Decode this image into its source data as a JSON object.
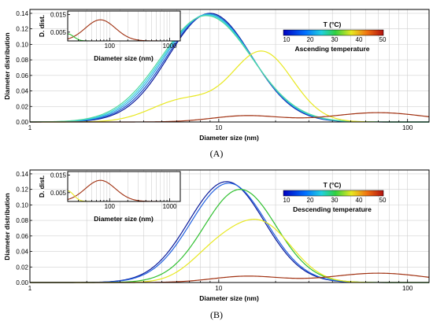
{
  "figure": {
    "panels": [
      {
        "caption": "(A)",
        "xlabel": "Diameter size (nm)",
        "ylabel": "Diameter distribution",
        "colorbar": {
          "title": "T (°C)",
          "ticks": [
            "10",
            "20",
            "30",
            "40",
            "50"
          ],
          "label": "Ascending temperature"
        },
        "inset": {
          "ylabel": "D. dist.",
          "xlabel": "Diameter size (nm)"
        }
      },
      {
        "caption": "(B)",
        "xlabel": "Diameter size (nm)",
        "ylabel": "Diameter distribution",
        "colorbar": {
          "title": "T (°C)",
          "ticks": [
            "10",
            "20",
            "30",
            "40",
            "50"
          ],
          "label": "Descending temperature"
        },
        "inset": {
          "ylabel": "D. dist.",
          "xlabel": "Diameter size (nm)"
        }
      }
    ]
  },
  "chart_data": [
    {
      "type": "line",
      "xscale": "log",
      "xlim": [
        1,
        130
      ],
      "ylim": [
        0,
        0.145
      ],
      "x_ticks": [
        1,
        10,
        100
      ],
      "y_ticks": [
        0.0,
        0.02,
        0.04,
        0.06,
        0.08,
        0.1,
        0.12,
        0.14
      ],
      "grid": true,
      "colors": {
        "blue": "#1020c8",
        "cyan": "#30d0e0",
        "green": "#30c030",
        "yellow": "#e8e820",
        "brown": "#a03010"
      },
      "series": [
        {
          "color": "#0a1a9a",
          "peaks": [
            {
              "center": 9.0,
              "height": 0.14,
              "sigma": 0.22
            }
          ]
        },
        {
          "color": "#1a50d0",
          "peaks": [
            {
              "center": 8.9,
              "height": 0.139,
              "sigma": 0.225
            }
          ]
        },
        {
          "color": "#2aa0e0",
          "peaks": [
            {
              "center": 8.8,
              "height": 0.139,
              "sigma": 0.23
            }
          ]
        },
        {
          "color": "#30d0e0",
          "peaks": [
            {
              "center": 8.7,
              "height": 0.138,
              "sigma": 0.235
            }
          ]
        },
        {
          "color": "#50d8a0",
          "peaks": [
            {
              "center": 8.6,
              "height": 0.137,
              "sigma": 0.24
            }
          ]
        },
        {
          "color": "#e8e820",
          "peaks": [
            {
              "center": 6.5,
              "height": 0.028,
              "sigma": 0.17
            },
            {
              "center": 17.0,
              "height": 0.09,
              "sigma": 0.16
            }
          ]
        },
        {
          "color": "#a03010",
          "peaks": [
            {
              "center": 14.0,
              "height": 0.008,
              "sigma": 0.18
            },
            {
              "center": 70.0,
              "height": 0.012,
              "sigma": 0.25
            }
          ]
        }
      ],
      "inset": {
        "xscale": "log",
        "xlim": [
          20,
          1500
        ],
        "ylim": [
          0,
          0.017
        ],
        "x_ticks": [
          100,
          1000
        ],
        "y_ticks": [
          0.005,
          0.015
        ],
        "series": [
          {
            "color": "#a03010",
            "peaks": [
              {
                "center": 70.0,
                "height": 0.012,
                "sigma": 0.25
              }
            ]
          },
          {
            "color": "#30c030",
            "peaks": [
              {
                "center": 20.0,
                "height": 0.004,
                "sigma": 0.1
              }
            ]
          }
        ]
      }
    },
    {
      "type": "line",
      "xscale": "log",
      "xlim": [
        1,
        130
      ],
      "ylim": [
        0,
        0.145
      ],
      "x_ticks": [
        1,
        10,
        100
      ],
      "y_ticks": [
        0.0,
        0.02,
        0.04,
        0.06,
        0.08,
        0.1,
        0.12,
        0.14
      ],
      "grid": true,
      "colors": {
        "blue": "#1020c8",
        "cyan": "#30d0e0",
        "green": "#30c030",
        "yellow": "#e8e820",
        "brown": "#a03010"
      },
      "series": [
        {
          "color": "#0a1a9a",
          "peaks": [
            {
              "center": 11.0,
              "height": 0.13,
              "sigma": 0.2
            }
          ]
        },
        {
          "color": "#2060e0",
          "peaks": [
            {
              "center": 11.3,
              "height": 0.128,
              "sigma": 0.2
            }
          ]
        },
        {
          "color": "#30c030",
          "peaks": [
            {
              "center": 13.0,
              "height": 0.12,
              "sigma": 0.19
            }
          ]
        },
        {
          "color": "#e8e820",
          "peaks": [
            {
              "center": 9.5,
              "height": 0.034,
              "sigma": 0.14
            },
            {
              "center": 17.0,
              "height": 0.073,
              "sigma": 0.16
            }
          ]
        },
        {
          "color": "#a03010",
          "peaks": [
            {
              "center": 14.0,
              "height": 0.008,
              "sigma": 0.18
            },
            {
              "center": 70.0,
              "height": 0.012,
              "sigma": 0.25
            }
          ]
        }
      ],
      "inset": {
        "xscale": "log",
        "xlim": [
          20,
          1500
        ],
        "ylim": [
          0,
          0.017
        ],
        "x_ticks": [
          100,
          1000
        ],
        "y_ticks": [
          0.005,
          0.015
        ],
        "series": [
          {
            "color": "#a03010",
            "peaks": [
              {
                "center": 70.0,
                "height": 0.012,
                "sigma": 0.25
              }
            ]
          },
          {
            "color": "#e8e820",
            "peaks": [
              {
                "center": 20.0,
                "height": 0.006,
                "sigma": 0.1
              }
            ]
          }
        ]
      }
    }
  ]
}
